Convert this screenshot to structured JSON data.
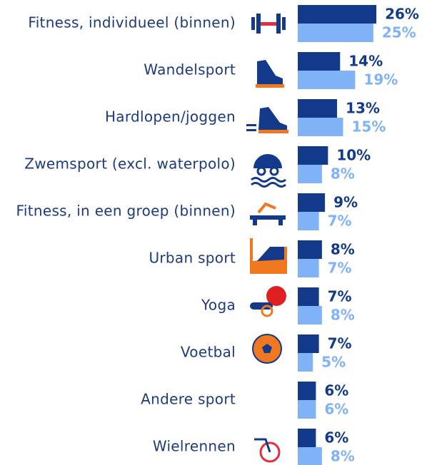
{
  "chart_data": {
    "type": "bar",
    "orientation": "horizontal",
    "categories": [
      "Fitness, individueel (binnen)",
      "Wandelsport",
      "Hardlopen/joggen",
      "Zwemsport (excl. waterpolo)",
      "Fitness, in een groep (binnen)",
      "Urban sport",
      "Yoga",
      "Voetbal",
      "Andere sport",
      "Wielrennen"
    ],
    "series": [
      {
        "color": "#12398a",
        "values": [
          26,
          14,
          13,
          10,
          9,
          8,
          7,
          7,
          6,
          6
        ],
        "value_labels": [
          "26%",
          "14%",
          "13%",
          "10%",
          "9%",
          "8%",
          "7%",
          "7%",
          "6%",
          "6%"
        ]
      },
      {
        "color": "#7fb2f7",
        "values": [
          25,
          19,
          15,
          8,
          7,
          7,
          8,
          5,
          6,
          8
        ],
        "value_labels": [
          "25%",
          "19%",
          "15%",
          "8%",
          "7%",
          "7%",
          "8%",
          "5%",
          "6%",
          "8%"
        ]
      }
    ],
    "xlim": [
      0,
      30
    ]
  }
}
